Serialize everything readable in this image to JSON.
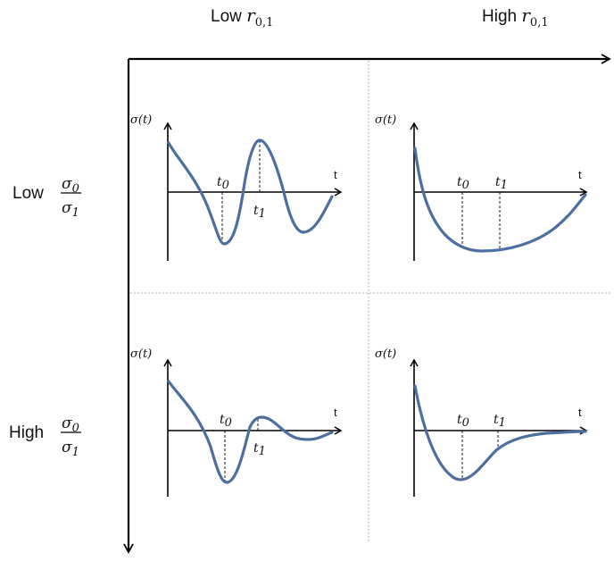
{
  "columns": {
    "low": {
      "word": "Low",
      "symbol": "r",
      "subscript": "0,1"
    },
    "high": {
      "word": "High",
      "symbol": "r",
      "subscript": "0,1"
    }
  },
  "rows": {
    "low": {
      "word": "Low",
      "numerator": "σ",
      "numerator_sub": "0",
      "denominator": "σ",
      "denominator_sub": "1"
    },
    "high": {
      "word": "High",
      "numerator": "σ",
      "numerator_sub": "0",
      "denominator": "σ",
      "denominator_sub": "1"
    }
  },
  "panel_labels": {
    "y_axis": "σ(t)",
    "x_axis": "t",
    "t0": "t",
    "t0_sub": "0",
    "t1": "t",
    "t1_sub": "1"
  }
}
